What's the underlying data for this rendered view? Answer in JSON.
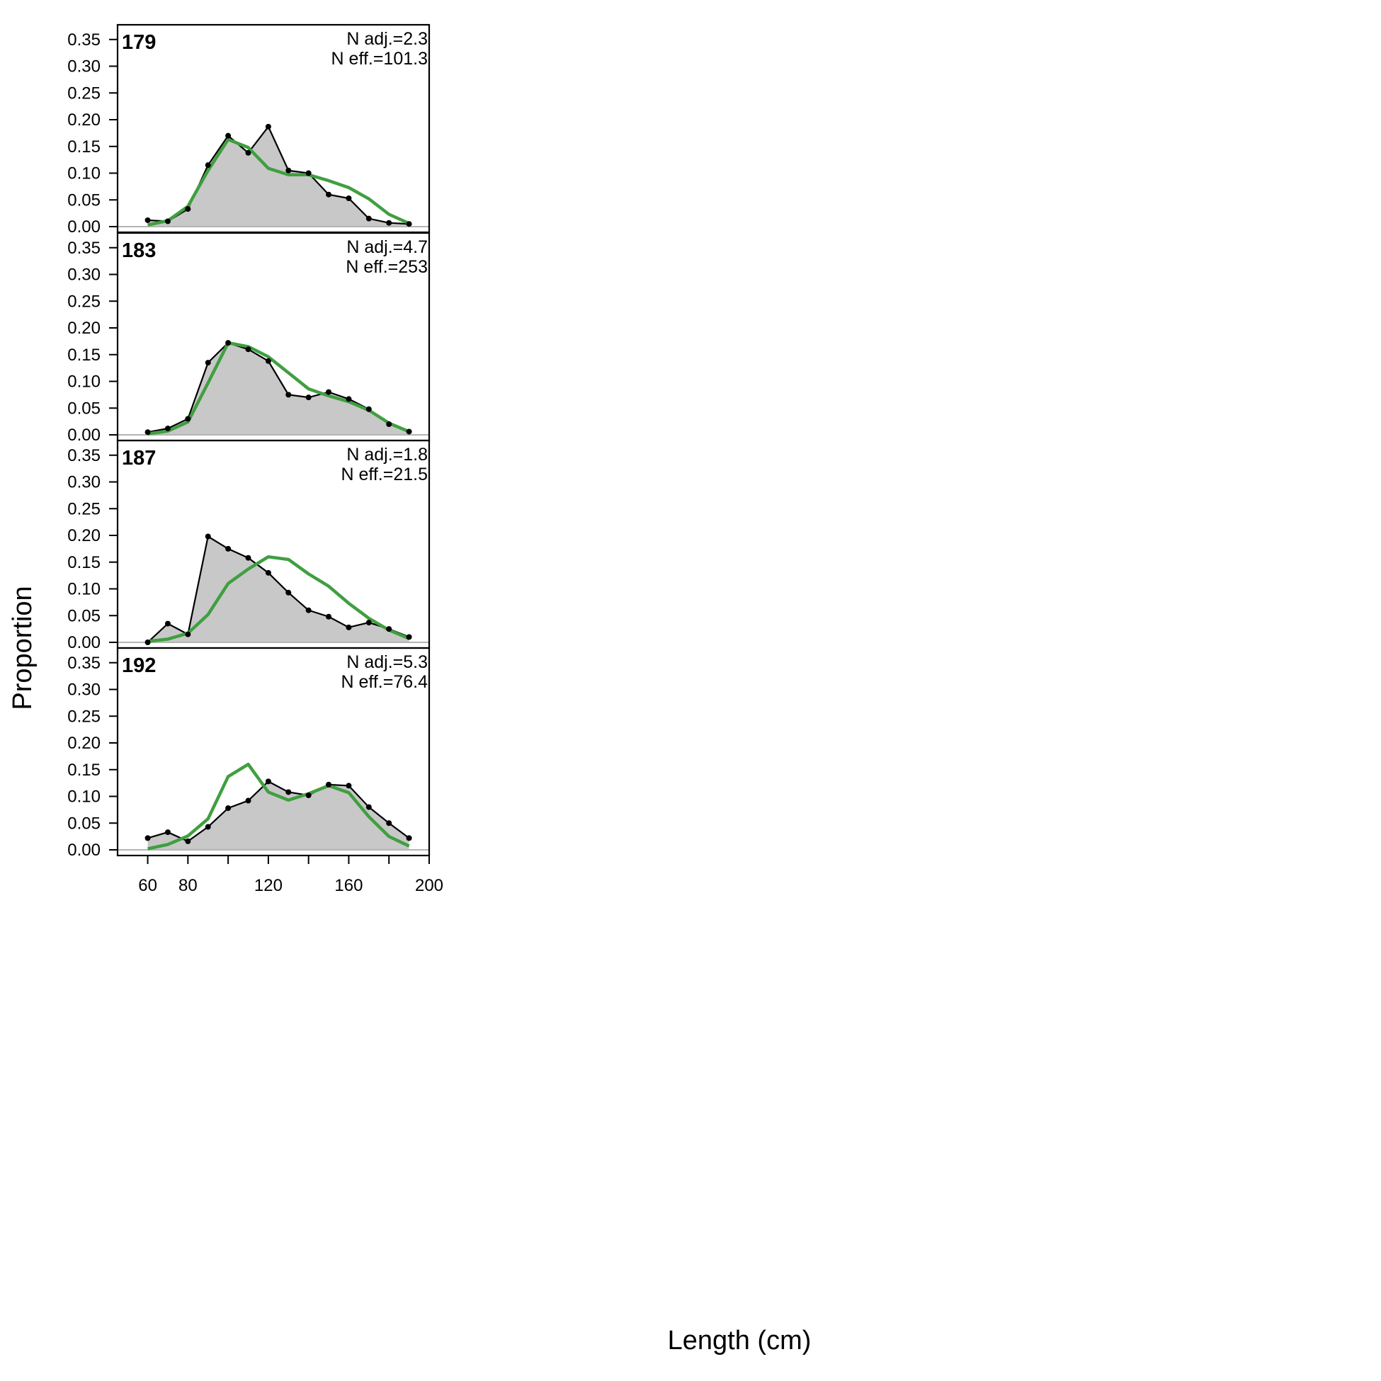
{
  "chart_data": {
    "type": "area",
    "xlabel": "Length (cm)",
    "ylabel": "Proportion",
    "xlim": [
      45,
      200
    ],
    "ylim": [
      0,
      0.37
    ],
    "x_ticks": [
      60,
      80,
      100,
      120,
      140,
      160,
      180,
      200
    ],
    "x_tick_labels": [
      "60",
      "80",
      "",
      "120",
      "",
      "160",
      "",
      "200"
    ],
    "y_ticks": [
      0,
      0.05,
      0.1,
      0.15,
      0.2,
      0.25,
      0.3,
      0.35
    ],
    "y_tick_labels": [
      "0.00",
      "0.05",
      "0.10",
      "0.15",
      "0.20",
      "0.25",
      "0.30",
      "0.35"
    ],
    "grid": false,
    "x": [
      60,
      70,
      80,
      90,
      100,
      110,
      120,
      130,
      140,
      150,
      160,
      170,
      180,
      190
    ],
    "colors": {
      "observed_fill": "#c8c8c8",
      "observed_line": "#000000",
      "expected_line": "#3f9f3f",
      "zero_line": "#b4b4b4"
    },
    "panels": [
      {
        "label": "179",
        "n_adj": "N adj.=2.3",
        "n_eff": "N eff.=101.3",
        "observed": [
          0.012,
          0.01,
          0.033,
          0.115,
          0.17,
          0.138,
          0.187,
          0.105,
          0.1,
          0.06,
          0.053,
          0.015,
          0.007,
          0.005
        ],
        "expected": [
          0.003,
          0.011,
          0.038,
          0.105,
          0.163,
          0.148,
          0.109,
          0.097,
          0.097,
          0.086,
          0.073,
          0.052,
          0.023,
          0.006
        ]
      },
      {
        "label": "183",
        "n_adj": "N adj.=4.7",
        "n_eff": "N eff.=253",
        "observed": [
          0.005,
          0.012,
          0.03,
          0.135,
          0.172,
          0.16,
          0.138,
          0.075,
          0.07,
          0.08,
          0.067,
          0.048,
          0.02,
          0.006
        ],
        "expected": [
          0.002,
          0.007,
          0.024,
          0.097,
          0.172,
          0.165,
          0.146,
          0.116,
          0.086,
          0.073,
          0.062,
          0.046,
          0.022,
          0.006
        ]
      },
      {
        "label": "187",
        "n_adj": "N adj.=1.8",
        "n_eff": "N eff.=21.5",
        "observed": [
          0.0,
          0.035,
          0.015,
          0.198,
          0.175,
          0.158,
          0.13,
          0.093,
          0.06,
          0.048,
          0.028,
          0.037,
          0.025,
          0.01
        ],
        "expected": [
          0.002,
          0.006,
          0.017,
          0.052,
          0.11,
          0.137,
          0.16,
          0.155,
          0.128,
          0.105,
          0.073,
          0.045,
          0.023,
          0.007
        ]
      },
      {
        "label": "192",
        "n_adj": "N adj.=5.3",
        "n_eff": "N eff.=76.4",
        "observed": [
          0.022,
          0.033,
          0.016,
          0.043,
          0.078,
          0.092,
          0.128,
          0.108,
          0.102,
          0.122,
          0.12,
          0.08,
          0.05,
          0.022
        ],
        "expected": [
          0.002,
          0.01,
          0.026,
          0.058,
          0.137,
          0.16,
          0.108,
          0.093,
          0.105,
          0.12,
          0.107,
          0.062,
          0.025,
          0.007
        ]
      }
    ]
  }
}
